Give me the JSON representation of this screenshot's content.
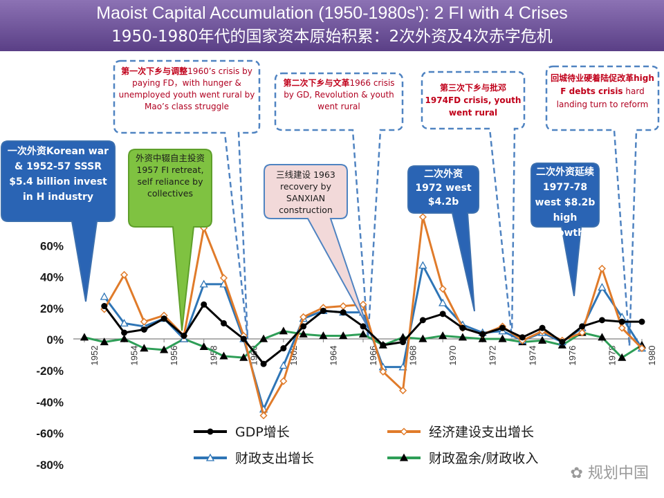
{
  "title": {
    "line1": "Maoist Capital Accumulation (1950-1980s'): 2 FI with 4 Crises",
    "line2": "1950-1980年代的国家资本原始积累：2次外资及4次赤字危机"
  },
  "callouts": {
    "c1": "一次外资Korean war & 1952-57 SSSR $5.4 billion invest in H industry",
    "c2": "外资中辍自主投资1957 FI retreat, self reliance by collectives",
    "c3": "三线建设 1963 recovery by SANXIAN construction",
    "c4": "二次外资 1972 west $4.2b",
    "c5": "二次外资延续1977-78 west $8.2b high growth",
    "d1_head": "第一次下乡与调整",
    "d1_body": "1960’s crisis by paying FD，with hunger & unemployed youth went rural by Mao’s class struggle",
    "d2_head": "第二次下乡与文革",
    "d2_body": "1966 crisis by GD, Revolution & youth went rural",
    "d3": "第三次下乡与批邓1974FD crisis, youth went rural",
    "d4_head": "回城待业硬着陆促改革high F debts crisis",
    "d4_body": "hard landing turn to reform"
  },
  "watermark": "规划中国",
  "colors": {
    "gdp": "#000000",
    "construction": "#e07b2a",
    "fiscal_exp": "#2e75b6",
    "surplus": "#2e9e57",
    "blue_box": "#2a64b4",
    "green_box": "#7fc241",
    "pink_box": "#f2d9d9",
    "dashed": "#4f83c1"
  },
  "chart_data": {
    "type": "line",
    "x": [
      1952,
      1953,
      1954,
      1955,
      1956,
      1957,
      1958,
      1959,
      1960,
      1961,
      1962,
      1963,
      1964,
      1965,
      1966,
      1967,
      1968,
      1969,
      1970,
      1971,
      1972,
      1973,
      1974,
      1975,
      1976,
      1977,
      1978,
      1979,
      1980
    ],
    "xticks": [
      "1952",
      "1954",
      "1956",
      "1958",
      "1960",
      "1962",
      "1964",
      "1966",
      "1968",
      "1970",
      "1972",
      "1974",
      "1976",
      "1978",
      "1980"
    ],
    "yticks": [
      "60%",
      "40%",
      "20%",
      "0%",
      "-20%",
      "-40%",
      "-60%",
      "-80%"
    ],
    "ylim": [
      -0.8,
      0.7
    ],
    "series": [
      {
        "name": "GDP增长",
        "marker": "circle",
        "values": [
          null,
          0.21,
          0.04,
          0.06,
          0.13,
          0.02,
          0.22,
          0.1,
          0.0,
          -0.16,
          -0.06,
          0.08,
          0.18,
          0.17,
          0.08,
          -0.04,
          -0.02,
          0.12,
          0.16,
          0.07,
          0.03,
          0.07,
          0.01,
          0.07,
          -0.02,
          0.08,
          0.12,
          0.11,
          0.11
        ]
      },
      {
        "name": "经济建设支出增长",
        "marker": "diamond",
        "values": [
          null,
          0.19,
          0.41,
          0.11,
          0.15,
          0.02,
          0.71,
          0.39,
          0.02,
          -0.49,
          -0.27,
          0.14,
          0.2,
          0.21,
          0.22,
          -0.21,
          -0.33,
          0.78,
          0.32,
          0.07,
          0.03,
          0.08,
          -0.01,
          0.05,
          -0.01,
          0.04,
          0.45,
          0.07,
          -0.06
        ]
      },
      {
        "name": "财政支出增长",
        "marker": "triangle",
        "values": [
          null,
          0.27,
          0.1,
          0.08,
          0.13,
          0.0,
          0.35,
          0.35,
          0.0,
          -0.45,
          -0.17,
          0.13,
          0.18,
          0.17,
          0.17,
          -0.18,
          -0.18,
          0.47,
          0.23,
          0.09,
          0.04,
          0.05,
          -0.01,
          0.04,
          -0.02,
          0.07,
          0.33,
          0.14,
          -0.06
        ]
      },
      {
        "name": "财政盈余/财政收入",
        "marker": "triangle",
        "values": [
          0.01,
          -0.02,
          0.0,
          -0.06,
          -0.07,
          0.0,
          -0.05,
          -0.11,
          -0.12,
          0.0,
          0.05,
          0.03,
          0.02,
          0.02,
          0.03,
          -0.04,
          0.01,
          0.0,
          0.02,
          0.01,
          0.0,
          0.0,
          -0.02,
          -0.01,
          -0.04,
          0.04,
          0.01,
          -0.12,
          -0.04
        ]
      }
    ]
  }
}
